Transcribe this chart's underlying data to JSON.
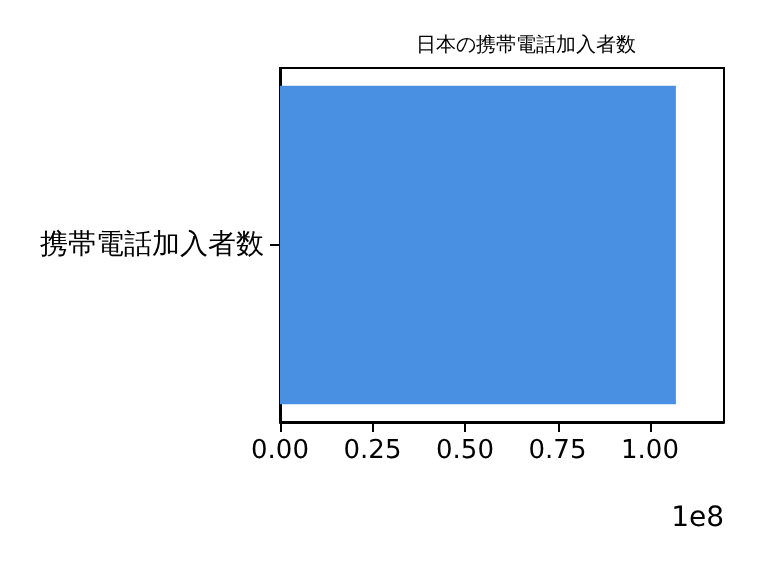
{
  "chart_data": {
    "type": "bar",
    "orientation": "horizontal",
    "title": "日本の携帯電話加入者数",
    "categories": [
      "携帯電話加入者数"
    ],
    "values": [
      1.07
    ],
    "color": "#4a90e2",
    "xlim": [
      0,
      1.2
    ],
    "xticks": [
      {
        "value": 0,
        "label": "0.00"
      },
      {
        "value": 0.25,
        "label": "0.25"
      },
      {
        "value": 0.5,
        "label": "0.50"
      },
      {
        "value": 0.75,
        "label": "0.75"
      },
      {
        "value": 1,
        "label": "1.00"
      }
    ],
    "annotations": [
      "1e8"
    ],
    "grid": false
  }
}
